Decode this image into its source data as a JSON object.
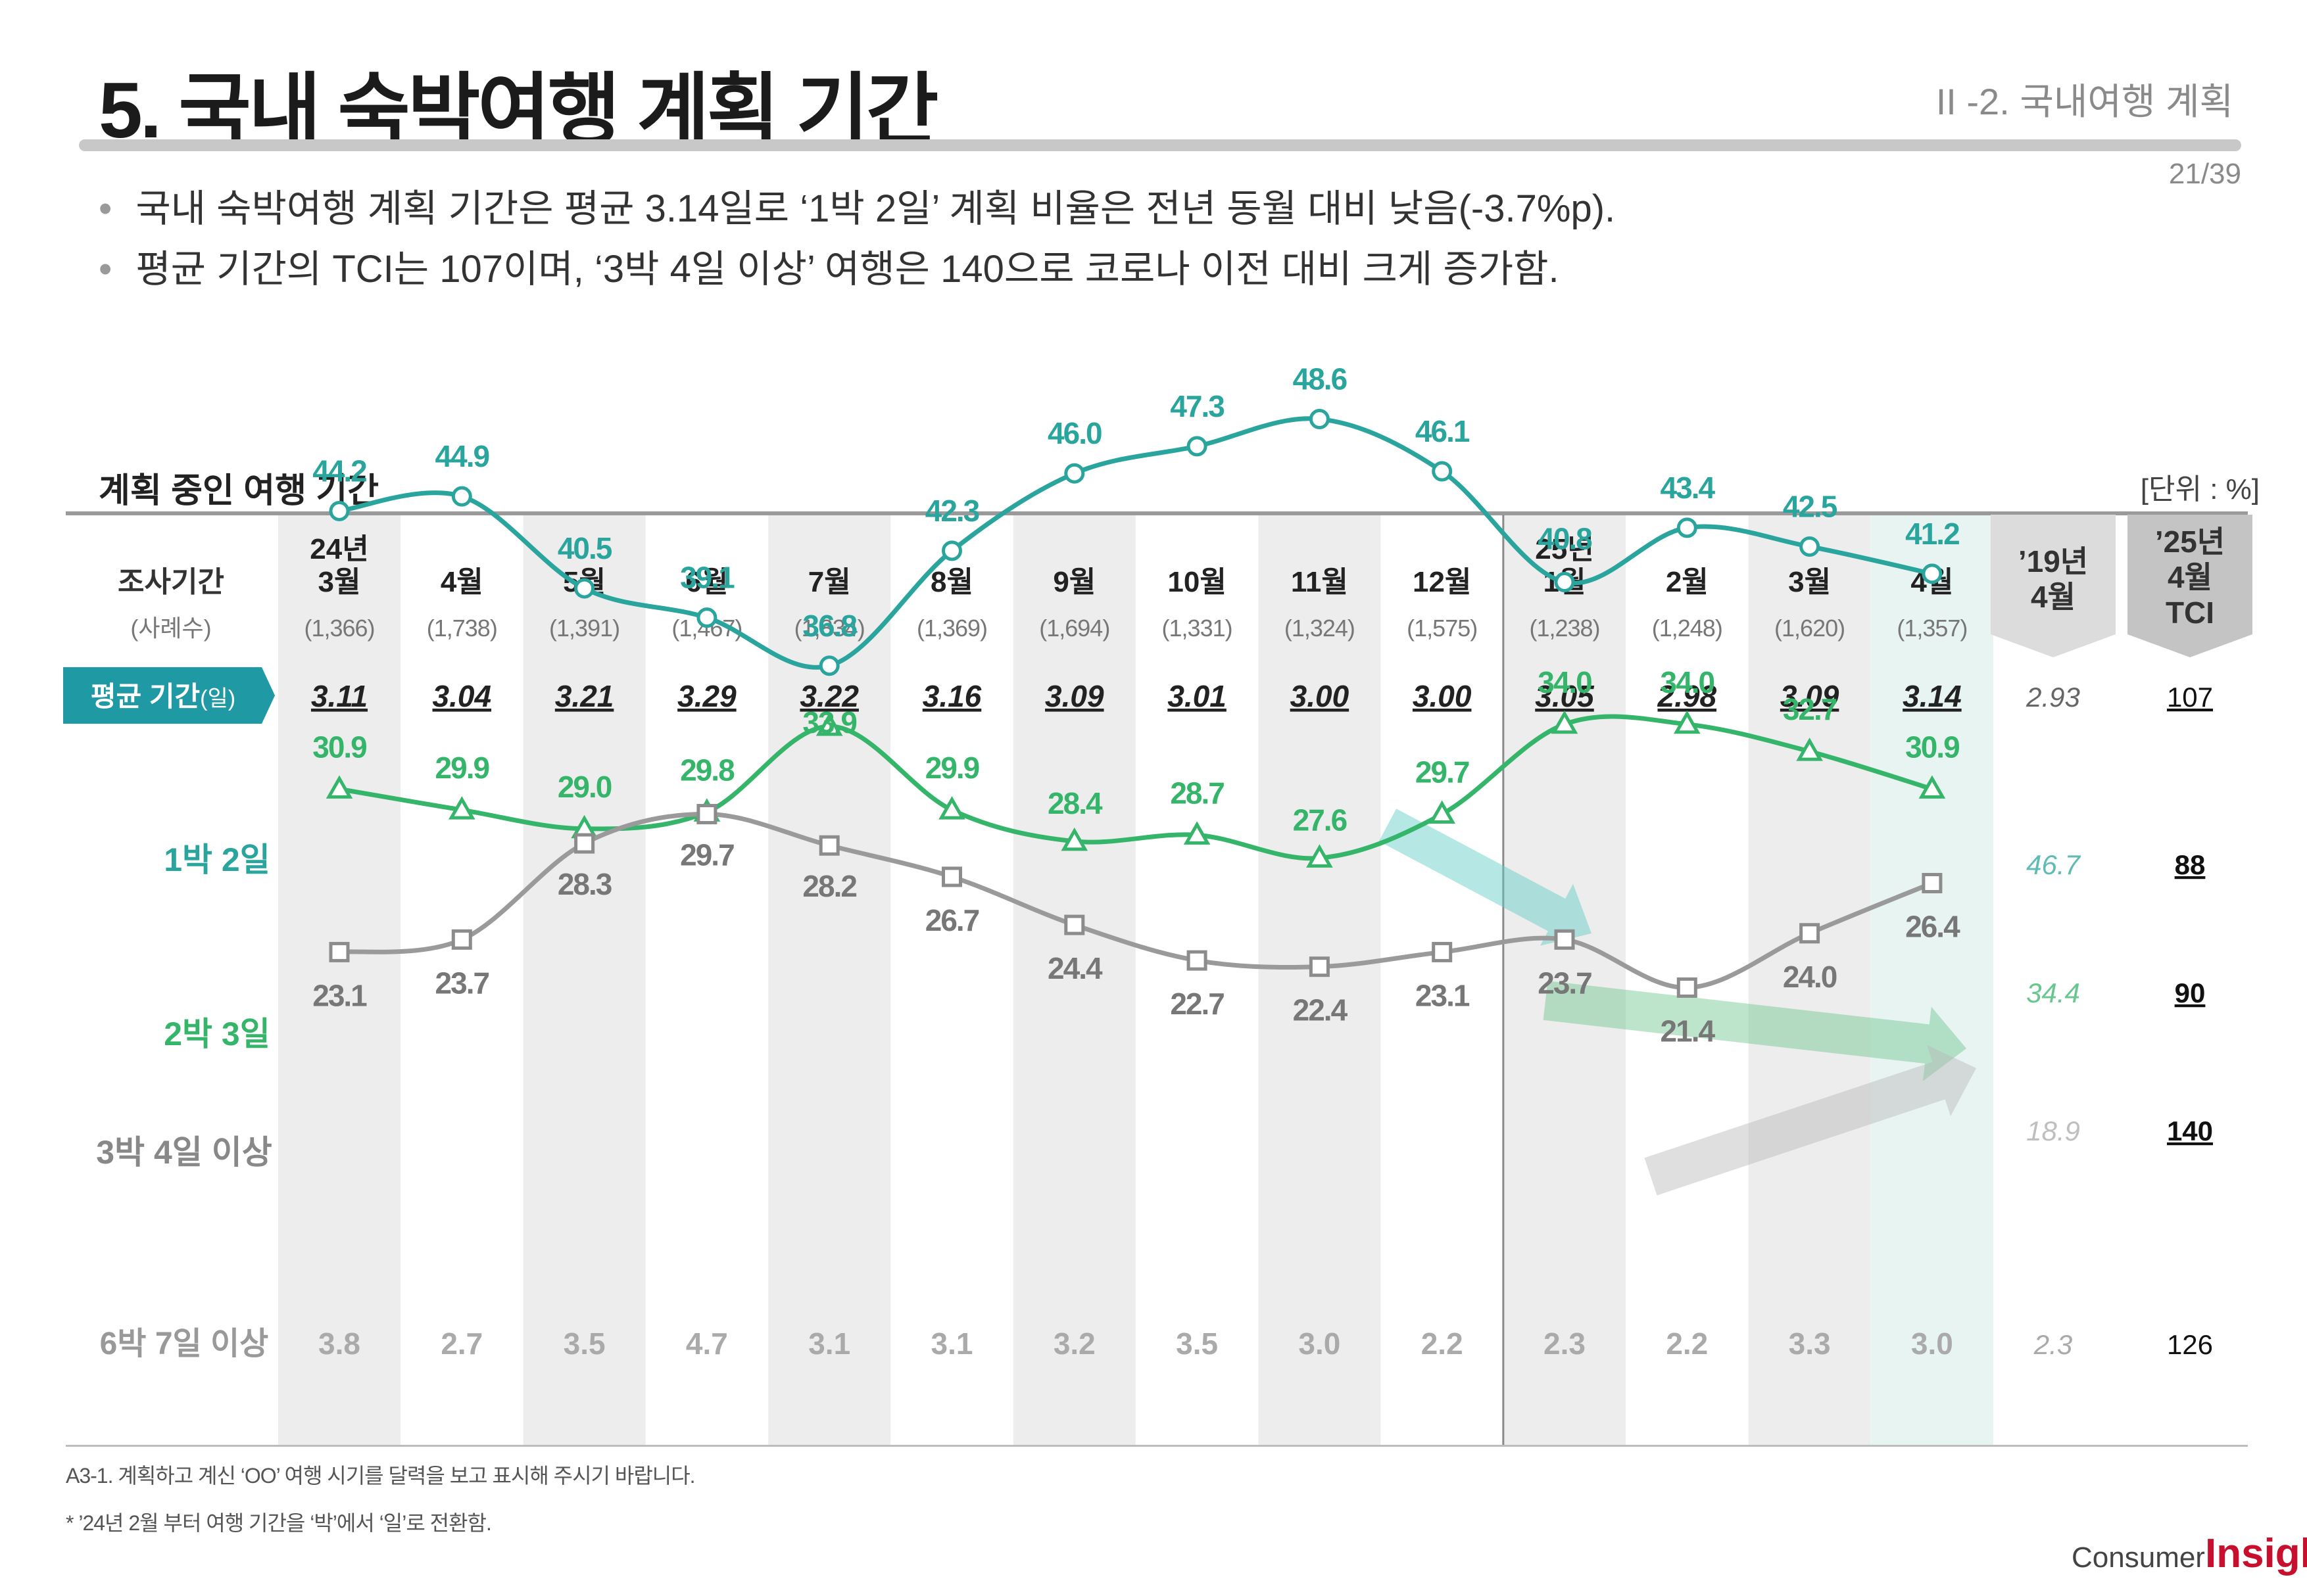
{
  "header": {
    "title": "5. 국내 숙박여행 계획 기간",
    "section": "II -2. 국내여행 계획",
    "page": "21/39"
  },
  "bullets": [
    "국내 숙박여행 계획 기간은 평균 3.14일로 ‘1박 2일’ 계획 비율은 전년 동월 대비 낮음(-3.7%p).",
    "평균 기간의 TCI는 107이며, ‘3박 4일 이상’ 여행은 140으로 코로나 이전 대비 크게 증가함."
  ],
  "chart_title": "계획 중인 여행 기간",
  "unit": "[단위 : %]",
  "row_header": {
    "period": "조사기간",
    "cases": "(사례수)",
    "avg_label": "평균 기간",
    "avg_unit": "(일)"
  },
  "chart_data": {
    "type": "line",
    "x": [
      {
        "year": "24년",
        "month": "3월",
        "n": "(1,366)"
      },
      {
        "year": "",
        "month": "4월",
        "n": "(1,738)"
      },
      {
        "year": "",
        "month": "5월",
        "n": "(1,391)"
      },
      {
        "year": "",
        "month": "6월",
        "n": "(1,467)"
      },
      {
        "year": "",
        "month": "7월",
        "n": "(1,834)"
      },
      {
        "year": "",
        "month": "8월",
        "n": "(1,369)"
      },
      {
        "year": "",
        "month": "9월",
        "n": "(1,694)"
      },
      {
        "year": "",
        "month": "10월",
        "n": "(1,331)"
      },
      {
        "year": "",
        "month": "11월",
        "n": "(1,324)"
      },
      {
        "year": "",
        "month": "12월",
        "n": "(1,575)"
      },
      {
        "year": "25년",
        "month": "1월",
        "n": "(1,238)"
      },
      {
        "year": "",
        "month": "2월",
        "n": "(1,248)"
      },
      {
        "year": "",
        "month": "3월",
        "n": "(1,620)"
      },
      {
        "year": "",
        "month": "4월",
        "n": "(1,357)"
      }
    ],
    "avg": [
      "3.11",
      "3.04",
      "3.21",
      "3.29",
      "3.22",
      "3.16",
      "3.09",
      "3.01",
      "3.00",
      "3.00",
      "3.05",
      "2.98",
      "3.09",
      "3.14"
    ],
    "series": [
      {
        "name": "1박 2일",
        "color": "#2aa59d",
        "marker": "circle",
        "values": [
          44.2,
          44.9,
          40.5,
          39.1,
          36.8,
          42.3,
          46.0,
          47.3,
          48.6,
          46.1,
          40.8,
          43.4,
          42.5,
          41.2
        ],
        "ref2019": "46.7",
        "tci": "88"
      },
      {
        "name": "2박 3일",
        "color": "#35b56a",
        "marker": "triangle",
        "values": [
          30.9,
          29.9,
          29.0,
          29.8,
          33.9,
          29.9,
          28.4,
          28.7,
          27.6,
          29.7,
          34.0,
          34.0,
          32.7,
          30.9
        ],
        "ref2019": "34.4",
        "tci": "90"
      },
      {
        "name": "3박 4일 이상",
        "color": "#9a9a9a",
        "marker": "square",
        "values": [
          23.1,
          23.7,
          28.3,
          29.7,
          28.2,
          26.7,
          24.4,
          22.7,
          22.4,
          23.1,
          23.7,
          21.4,
          24.0,
          26.4
        ],
        "ref2019": "18.9",
        "tci": "140"
      }
    ],
    "table_row": {
      "name": "6박 7일 이상",
      "values": [
        "3.8",
        "2.7",
        "3.5",
        "4.7",
        "3.1",
        "3.1",
        "3.2",
        "3.5",
        "3.0",
        "2.2",
        "2.3",
        "2.2",
        "3.3",
        "3.0"
      ],
      "ref2019": "2.3",
      "tci": "126"
    },
    "ref_columns": {
      "y2019": [
        "’19년",
        "4월"
      ],
      "tci": [
        "’25년",
        "4월",
        "TCI"
      ],
      "avg2019": "2.93",
      "avg_tci": "107"
    }
  },
  "footnotes": [
    "A3-1. 계획하고 계신 ‘OO’ 여행 시기를 달력을 보고 표시해 주시기 바랍니다.",
    "* ’24년 2월 부터 여행 기간을 ‘박’에서 ‘일’로 전환함."
  ],
  "logo": {
    "part1": "Consumer",
    "part2": "Insight"
  }
}
